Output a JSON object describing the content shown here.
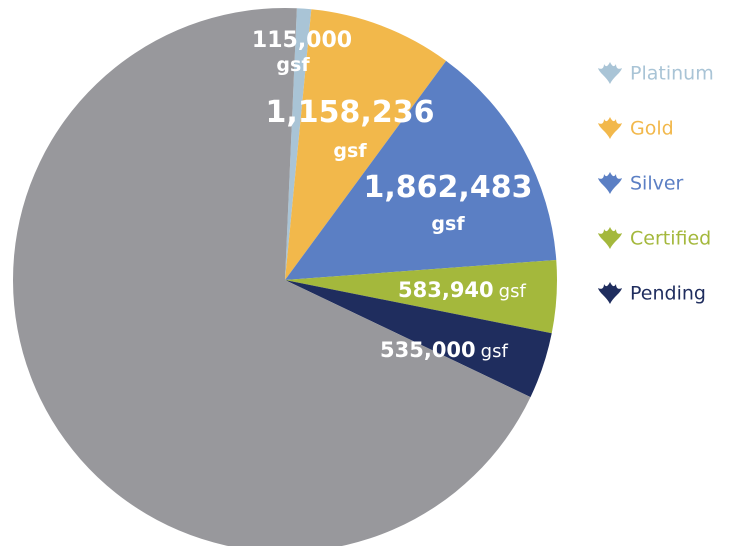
{
  "chart_data": {
    "type": "pie",
    "categories": [
      "Platinum",
      "Gold",
      "Silver",
      "Certified",
      "Pending",
      null
    ],
    "values": [
      115000,
      1158236,
      1862483,
      583940,
      535000,
      9300000
    ],
    "value_labels": [
      "115,000",
      "1,158,236",
      "1,862,483",
      "583,940",
      "535,000",
      null
    ],
    "unit": "gsf",
    "colors": [
      "#a9c4d6",
      "#f2b84b",
      "#5b7fc4",
      "#a4b83c",
      "#1f2d5e",
      "#98989c"
    ],
    "legend": "right"
  }
}
